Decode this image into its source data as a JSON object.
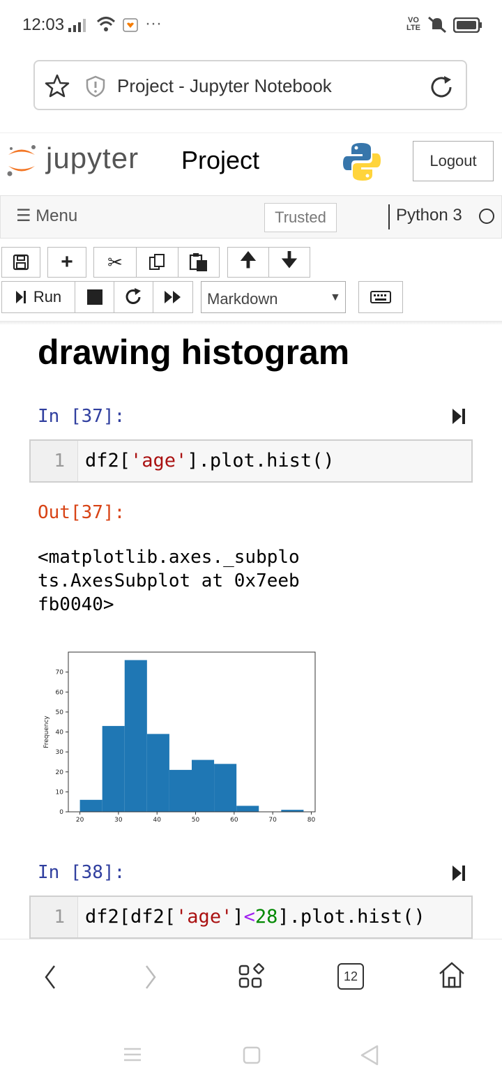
{
  "status_bar": {
    "time": "12:03",
    "network_label": "VO LTE"
  },
  "browser": {
    "page_title": "Project - Jupyter Notebook"
  },
  "header": {
    "logo_text": "jupyter",
    "notebook_name": "Project",
    "logout_label": "Logout"
  },
  "menubar": {
    "menu_label": "Menu",
    "trusted_label": "Trusted",
    "kernel_label": "Python 3"
  },
  "toolbar": {
    "run_label": "Run",
    "cell_type": "Markdown"
  },
  "notebook": {
    "heading": "drawing histogram",
    "cell1": {
      "prompt_in": "In [37]:",
      "line_no": "1",
      "code_prefix": "df2[",
      "code_string": "'age'",
      "code_suffix": "].plot.hist()",
      "prompt_out": "Out[37]:",
      "output_text": "<matplotlib.axes._subplo\nts.AxesSubplot at 0x7eeb\nfb0040>"
    },
    "cell2": {
      "prompt_in": "In [38]:",
      "line_no": "1",
      "code_prefix": "df2[df2[",
      "code_string": "'age'",
      "code_mid": "]",
      "code_op": "<",
      "code_num": "28",
      "code_suffix": "].plot.hist()"
    }
  },
  "bottom_nav": {
    "tab_count": "12"
  },
  "chart_data": {
    "type": "bar",
    "bin_edges": [
      20,
      25.8,
      31.6,
      37.4,
      43.2,
      49.0,
      54.8,
      60.6,
      66.4,
      72.2,
      78.0
    ],
    "values": [
      6,
      43,
      76,
      39,
      21,
      26,
      24,
      3,
      0,
      1
    ],
    "ylabel": "Frequency",
    "xlim": [
      17,
      81
    ],
    "ylim": [
      0,
      80
    ],
    "xticks": [
      20,
      30,
      40,
      50,
      60,
      70,
      80
    ],
    "yticks": [
      0,
      10,
      20,
      30,
      40,
      50,
      60,
      70
    ],
    "bar_color": "#1f77b4",
    "grid": false
  }
}
